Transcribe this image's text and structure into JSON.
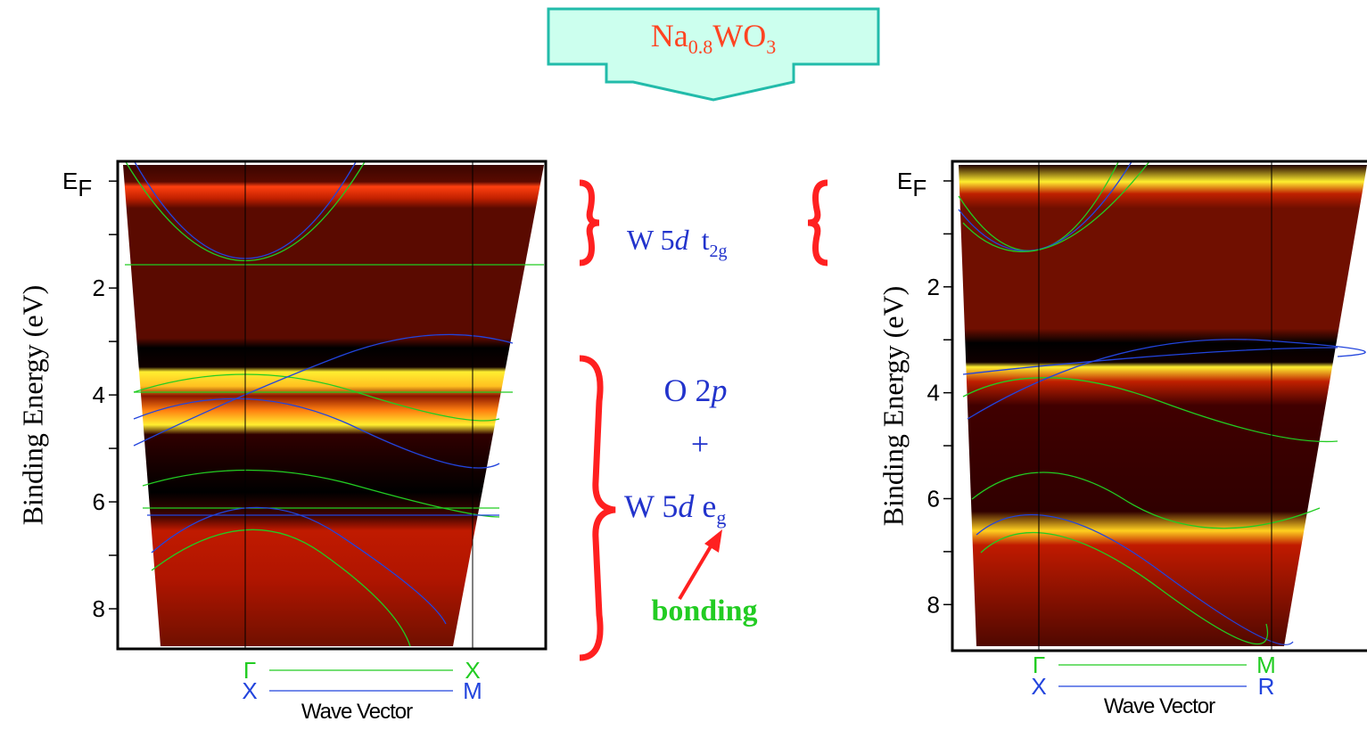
{
  "title": {
    "base": "Na",
    "sub1": "0.8",
    "mid": "WO",
    "sub2": "3"
  },
  "panels": [
    {
      "y_label": "Binding Energy (eV)",
      "ef_label": "E",
      "ef_sub": "F",
      "ef_value": 0,
      "ylim": [
        -0.37,
        8.75
      ],
      "yticks": [
        2,
        4,
        6,
        8
      ],
      "minor_yticks": [
        1,
        3,
        5,
        7
      ],
      "x_label": "Wave Vector",
      "paths": [
        {
          "from": "Γ",
          "to": "X",
          "color": "#22cc22"
        },
        {
          "from": "X",
          "to": "M",
          "color": "#2244dd"
        }
      ]
    },
    {
      "y_label": "Binding Energy (eV)",
      "ef_label": "E",
      "ef_sub": "F",
      "ef_value": 0,
      "ylim": [
        -0.37,
        8.87
      ],
      "yticks": [
        2,
        4,
        6,
        8
      ],
      "minor_yticks": [
        1,
        3,
        5,
        7
      ],
      "x_label": "Wave Vector",
      "paths": [
        {
          "from": "Γ",
          "to": "M",
          "color": "#22cc22"
        },
        {
          "from": "X",
          "to": "R",
          "color": "#2244dd"
        }
      ]
    }
  ],
  "annotations": {
    "t2g": {
      "text": "W 5",
      "italic": "d",
      "sym": "t",
      "sub": "2g"
    },
    "o2p": {
      "text": "O 2",
      "italic": "p"
    },
    "plus": "+",
    "eg": {
      "text": "W 5",
      "italic": "d",
      "sym": " e",
      "sub": "g"
    },
    "bonding": "bonding"
  }
}
